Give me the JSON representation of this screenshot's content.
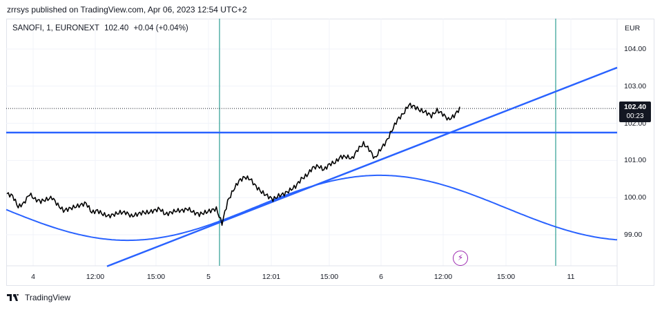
{
  "header": {
    "publisher_text": "zrrsys published on TradingView.com, Apr 06, 2023 12:54 UTC+2"
  },
  "legend": {
    "symbol": "SANOFI, 1, EURONEXT",
    "last": "102.40",
    "change": "+0.04 (+0.04%)"
  },
  "axis": {
    "currency": "EUR",
    "y_ticks": [
      "104.00",
      "103.00",
      "102.00",
      "101.00",
      "100.00",
      "99.00"
    ],
    "x_ticks": [
      "4",
      "12:00",
      "15:00",
      "5",
      "12:01",
      "15:00",
      "6",
      "12:00",
      "15:00",
      "11"
    ]
  },
  "price_badge": {
    "price": "102.40",
    "countdown": "00:23"
  },
  "footer": {
    "brand": "TradingView"
  },
  "colors": {
    "price_line": "#000000",
    "drawing_lines": "#2962ff",
    "vertical_lines": "#00897b",
    "signal_icon": "#9c27b0"
  },
  "chart_data": {
    "type": "line",
    "title": "",
    "xlabel": "",
    "ylabel": "",
    "ylim": [
      98.15,
      104.7
    ],
    "x_ticks": [
      "4",
      "12:00",
      "15:00",
      "5",
      "12:01",
      "15:00",
      "6",
      "12:00",
      "15:00",
      "11"
    ],
    "series": [
      {
        "values": [
          100.1,
          100.05,
          99.75,
          99.85,
          100.1,
          99.95,
          99.9,
          99.95,
          100.0,
          99.8,
          99.65,
          99.7,
          99.75,
          99.8,
          99.85,
          99.6,
          99.65,
          99.55,
          99.5,
          99.55,
          99.6,
          99.6,
          99.5,
          99.55,
          99.6,
          99.6,
          99.65,
          99.7,
          99.55,
          99.6,
          99.65,
          99.65,
          99.7,
          99.6,
          99.55,
          99.6,
          99.65,
          99.7,
          99.3,
          99.9,
          100.2,
          100.45,
          100.55,
          100.5,
          100.3,
          100.15,
          100.05,
          99.95,
          100.05,
          100.1,
          100.2,
          100.3,
          100.5,
          100.6,
          100.8,
          100.85,
          100.75,
          100.9,
          100.95,
          101.1,
          101.1,
          101.05,
          101.3,
          101.45,
          101.3,
          101.05,
          101.3,
          101.5,
          101.8,
          102.1,
          102.25,
          102.5,
          102.45,
          102.35,
          102.3,
          102.2,
          102.35,
          102.25,
          102.1,
          102.2,
          102.4
        ]
      }
    ],
    "reference_lines": [
      {
        "kind": "horizontal",
        "value": 101.75
      },
      {
        "kind": "trendline",
        "from": 98.15,
        "to": 103.5
      },
      {
        "kind": "sine-curve",
        "min": 98.85,
        "max": 100.6
      },
      {
        "kind": "dotted-last-price",
        "value": 102.4
      }
    ]
  }
}
